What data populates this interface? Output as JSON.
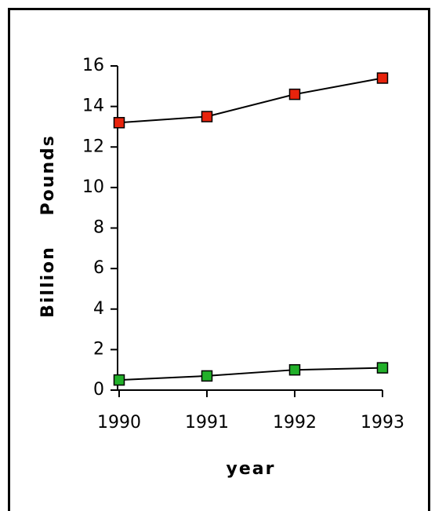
{
  "chart_data": {
    "type": "line",
    "y_label": "Billion    Pounds",
    "x_label": "year",
    "x": [
      1990,
      1991,
      1992,
      1993
    ],
    "xlim": [
      1990,
      1993
    ],
    "xticks": [
      1990,
      1991,
      1992,
      1993
    ],
    "ylim": [
      0,
      16
    ],
    "yticks": [
      0,
      2,
      4,
      6,
      8,
      10,
      12,
      14,
      16
    ],
    "series": [
      {
        "color": "#e8230c",
        "values": [
          13.2,
          13.5,
          14.6,
          15.4
        ]
      },
      {
        "color": "#22b02a",
        "values": [
          0.5,
          0.7,
          1.0,
          1.1
        ]
      }
    ]
  }
}
